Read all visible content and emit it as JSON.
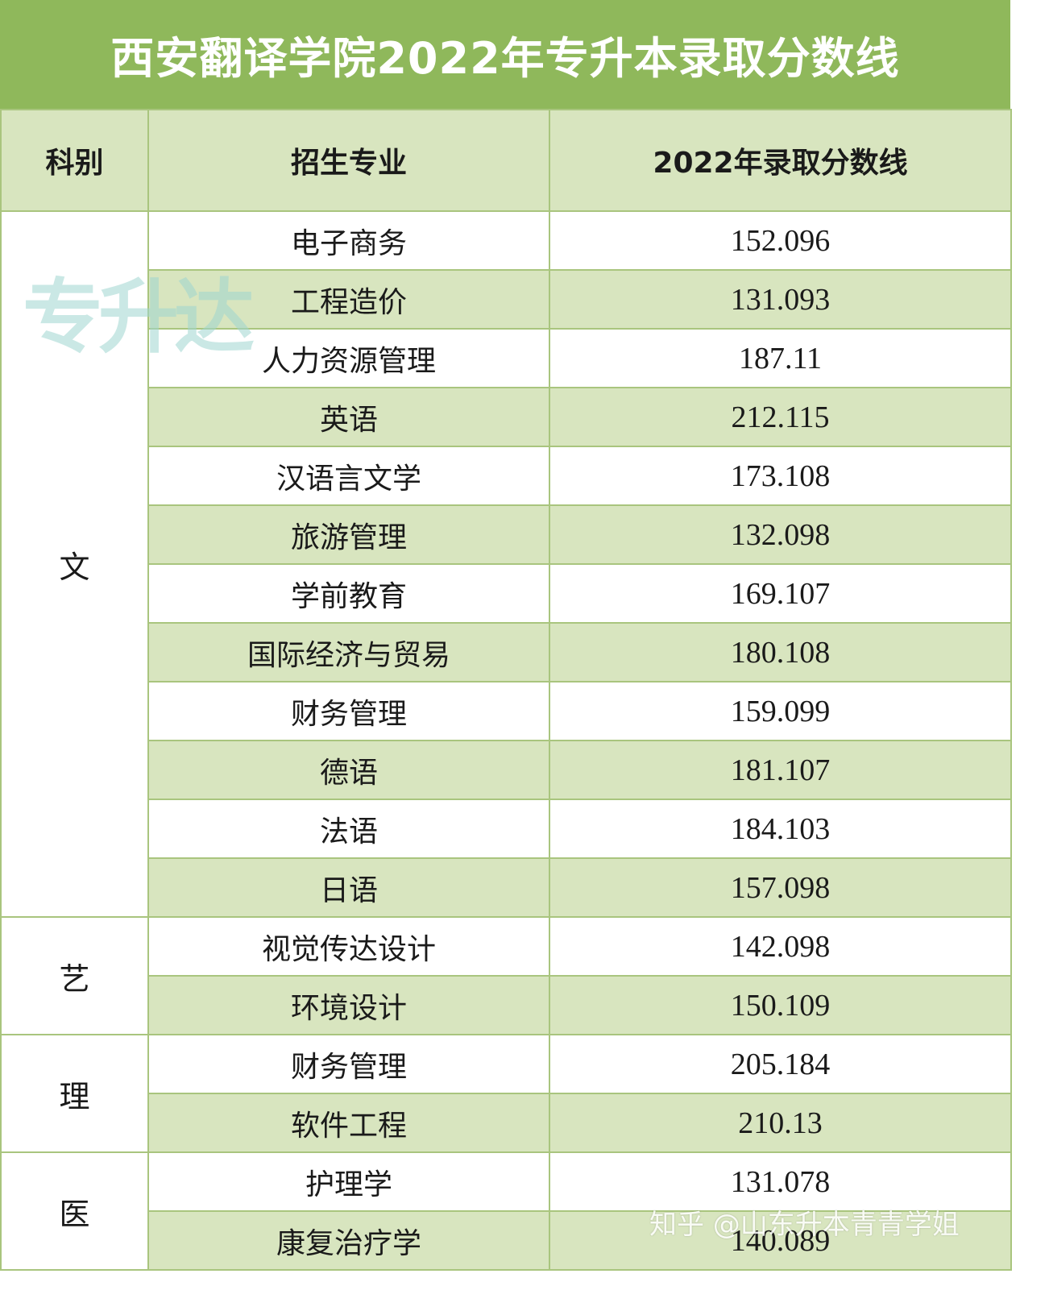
{
  "title": "西安翻译学院2022年专升本录取分数线",
  "headers": {
    "category": "科别",
    "major": "招生专业",
    "score": "2022年录取分数线"
  },
  "groups": [
    {
      "category": "文",
      "rows": [
        {
          "major": "电子商务",
          "score": "152.096"
        },
        {
          "major": "工程造价",
          "score": "131.093"
        },
        {
          "major": "人力资源管理",
          "score": "187.11"
        },
        {
          "major": "英语",
          "score": "212.115"
        },
        {
          "major": "汉语言文学",
          "score": "173.108"
        },
        {
          "major": "旅游管理",
          "score": "132.098"
        },
        {
          "major": "学前教育",
          "score": "169.107"
        },
        {
          "major": "国际经济与贸易",
          "score": "180.108"
        },
        {
          "major": "财务管理",
          "score": "159.099"
        },
        {
          "major": "德语",
          "score": "181.107"
        },
        {
          "major": "法语",
          "score": "184.103"
        },
        {
          "major": "日语",
          "score": "157.098"
        }
      ]
    },
    {
      "category": "艺",
      "rows": [
        {
          "major": "视觉传达设计",
          "score": "142.098"
        },
        {
          "major": "环境设计",
          "score": "150.109"
        }
      ]
    },
    {
      "category": "理",
      "rows": [
        {
          "major": "财务管理",
          "score": "205.184"
        },
        {
          "major": "软件工程",
          "score": "210.13"
        }
      ]
    },
    {
      "category": "医",
      "rows": [
        {
          "major": "护理学",
          "score": "131.078"
        },
        {
          "major": "康复治疗学",
          "score": "140.089"
        }
      ]
    }
  ],
  "watermarks": {
    "logo": "专升达",
    "credit": "知乎 @山东升本青青学姐"
  },
  "colors": {
    "accent": "#8fb85b",
    "row_alt": "#d8e5bf",
    "border": "#a9c57e",
    "logo": "#9fd6d0"
  }
}
